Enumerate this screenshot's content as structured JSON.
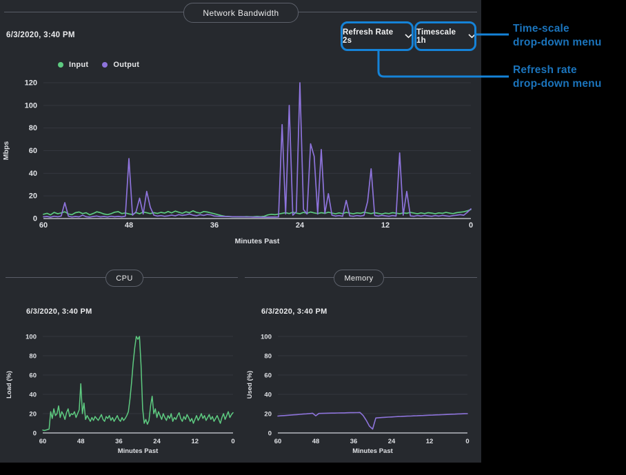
{
  "page": {
    "background": "#000000",
    "panel_background": "#26292e"
  },
  "colors": {
    "grid": "#34373e",
    "zero_axis": "#b7bac0",
    "tick_text": "#dfe1e5",
    "divider": "#5a5e68",
    "input_green": "#5ecb81",
    "output_purple": "#8e74dc",
    "annotation_line": "#1583d8",
    "annotation_text": "#1b74bc"
  },
  "network": {
    "timestamp": "6/3/2020, 3:40 PM",
    "dropdowns": [
      {
        "label": "Refresh Rate 2s"
      },
      {
        "label": "Timescale 1h"
      }
    ]
  },
  "cpu": {
    "timestamp": "6/3/2020, 3:40 PM"
  },
  "memory": {
    "timestamp": "6/3/2020, 3:40 PM"
  },
  "annotations": {
    "timescale_label": {
      "lines": [
        "Time-scale",
        "drop-down menu"
      ]
    },
    "refresh_label": {
      "lines": [
        "Refresh rate",
        "drop-down menu"
      ]
    }
  },
  "chart_data": [
    {
      "id": "network",
      "type": "line",
      "title": "Network Bandwidth",
      "xlabel": "Minutes Past",
      "ylabel": "Mbps",
      "xlim": [
        60,
        0
      ],
      "ylim": [
        0,
        120
      ],
      "xticks": [
        60,
        48,
        36,
        24,
        12,
        0
      ],
      "yticks": [
        0,
        20,
        40,
        60,
        80,
        100,
        120
      ],
      "grid": "horizontal",
      "legend_position": "top-left",
      "x_start": 60,
      "x_step": -0.5,
      "series": [
        {
          "name": "Input",
          "color": "#5ecb81",
          "values": [
            3.8,
            4.6,
            3.2,
            5.4,
            4.2,
            5.0,
            6.0,
            4.1,
            3.4,
            5.2,
            5.8,
            4.4,
            5.1,
            3.3,
            4.5,
            6.0,
            5.2,
            4.0,
            3.5,
            4.3,
            5.6,
            6.1,
            4.4,
            5.0,
            4.1,
            3.6,
            5.3,
            4.2,
            5.8,
            5.1,
            4.4,
            5.2,
            4.5,
            5.5,
            4.8,
            6.2,
            5.0,
            6.6,
            5.6,
            4.6,
            6.0,
            5.2,
            6.8,
            5.4,
            4.8,
            6.2,
            5.8,
            5.0,
            4.2,
            3.4,
            2.6,
            2.0,
            1.8,
            1.6,
            1.5,
            1.6,
            1.5,
            1.7,
            1.5,
            1.6,
            1.8,
            1.6,
            2.0,
            3.2,
            3.8,
            3.4,
            4.0,
            4.6,
            5.2,
            4.4,
            5.6,
            4.8,
            4.2,
            5.4,
            4.6,
            5.8,
            5.0,
            4.4,
            5.2,
            4.6,
            5.6,
            4.8,
            4.2,
            5.0,
            4.4,
            5.4,
            4.8,
            4.2,
            5.0,
            4.6,
            5.6,
            5.0,
            4.4,
            5.2,
            4.6,
            4.0,
            4.8,
            4.4,
            5.2,
            4.8,
            4.2,
            5.0,
            4.6,
            5.4,
            4.8,
            4.2,
            5.0,
            4.4,
            5.2,
            4.8,
            4.2,
            5.0,
            4.6,
            5.4,
            4.8,
            4.4,
            5.2,
            5.6,
            6.0,
            6.8,
            8.0
          ]
        },
        {
          "name": "Output",
          "color": "#8e74dc",
          "values": [
            1.5,
            1.8,
            1.2,
            2.0,
            1.6,
            2.2,
            14,
            2.0,
            1.4,
            1.8,
            1.5,
            3.0,
            1.6,
            1.3,
            1.8,
            2.2,
            1.5,
            1.8,
            1.4,
            2.0,
            1.6,
            1.9,
            1.5,
            2.1,
            53,
            3.0,
            6.0,
            18,
            4.0,
            24,
            10,
            3.0,
            2.2,
            2.6,
            2.0,
            2.4,
            3.0,
            2.4,
            3.5,
            2.8,
            3.2,
            4.0,
            3.0,
            2.5,
            3.4,
            2.8,
            3.6,
            3.2,
            2.2,
            2.0,
            1.9,
            1.8,
            1.7,
            1.6,
            1.6,
            1.5,
            1.5,
            1.4,
            1.4,
            1.3,
            1.3,
            1.3,
            1.2,
            1.2,
            1.3,
            1.3,
            1.4,
            83,
            4.0,
            100,
            3.0,
            6.0,
            120,
            8.0,
            4.0,
            66,
            55,
            4.0,
            61,
            4.5,
            22,
            3.0,
            2.2,
            2.6,
            2.0,
            16,
            2.4,
            2.0,
            2.6,
            2.2,
            2.8,
            15,
            44,
            2.6,
            2.2,
            2.8,
            2.4,
            2.0,
            2.6,
            2.2,
            58,
            3.0,
            24,
            2.4,
            2.0,
            2.6,
            2.2,
            2.8,
            2.4,
            2.0,
            2.6,
            2.2,
            2.8,
            2.4,
            2.0,
            2.6,
            3.0,
            3.4,
            3.0,
            5.5,
            8.5
          ]
        }
      ]
    },
    {
      "id": "cpu",
      "type": "line",
      "title": "CPU",
      "xlabel": "Minutes Past",
      "ylabel": "Load (%)",
      "xlim": [
        60,
        0
      ],
      "ylim": [
        0,
        100
      ],
      "xticks": [
        60,
        48,
        36,
        24,
        12,
        0
      ],
      "yticks": [
        0,
        20,
        40,
        60,
        80,
        100
      ],
      "grid": "horizontal",
      "x_start": 60,
      "x_step": -0.5,
      "series": [
        {
          "name": "Load",
          "color": "#5ecb81",
          "values": [
            3,
            2.5,
            3,
            3.5,
            4,
            22,
            15,
            25,
            18,
            20,
            28,
            16,
            22,
            19,
            14,
            21,
            25,
            17,
            20,
            19,
            22,
            16,
            20,
            24,
            51,
            20,
            31,
            14,
            18,
            15,
            12,
            16,
            13,
            17,
            15,
            13,
            16,
            19,
            14,
            12,
            17,
            15,
            18,
            13,
            16,
            12,
            15,
            18,
            14,
            12,
            16,
            13,
            15,
            18,
            22,
            35,
            52,
            72,
            88,
            100,
            97,
            100,
            70,
            25,
            10,
            14,
            9,
            13,
            28,
            38,
            20,
            25,
            16,
            22,
            18,
            14,
            20,
            16,
            13,
            18,
            15,
            20,
            12,
            16,
            14,
            18,
            21,
            15,
            12,
            17,
            14,
            19,
            16,
            12,
            15,
            10,
            14,
            18,
            13,
            16,
            20,
            15,
            18,
            13,
            16,
            19,
            14,
            17,
            12,
            15,
            18,
            14,
            10,
            16,
            20,
            14,
            18,
            22,
            16,
            19,
            21
          ]
        }
      ]
    },
    {
      "id": "memory",
      "type": "line",
      "title": "Memory",
      "xlabel": "Minutes Past",
      "ylabel": "Used (%)",
      "xlim": [
        60,
        0
      ],
      "ylim": [
        0,
        100
      ],
      "xticks": [
        60,
        48,
        36,
        24,
        12,
        0
      ],
      "yticks": [
        0,
        20,
        40,
        60,
        80,
        100
      ],
      "grid": "horizontal",
      "x_start": 60,
      "x_step": -1,
      "series": [
        {
          "name": "Used",
          "color": "#8e74dc",
          "values": [
            17.5,
            17.8,
            18.0,
            18.3,
            18.5,
            18.8,
            19.0,
            19.3,
            19.6,
            19.8,
            20.1,
            20.4,
            17.8,
            20.2,
            20.3,
            20.4,
            20.5,
            20.6,
            20.6,
            20.7,
            20.8,
            20.8,
            20.9,
            21.0,
            21.0,
            21.1,
            21.2,
            18.0,
            13.0,
            7.0,
            4.0,
            15.5,
            15.8,
            16.0,
            16.2,
            16.4,
            16.6,
            16.8,
            17.0,
            17.1,
            17.3,
            17.4,
            17.5,
            17.7,
            17.8,
            18.0,
            18.1,
            18.3,
            18.4,
            18.5,
            18.7,
            18.8,
            18.9,
            19.1,
            19.2,
            19.4,
            19.5,
            19.7,
            19.8,
            19.9,
            20.0
          ]
        }
      ]
    }
  ]
}
